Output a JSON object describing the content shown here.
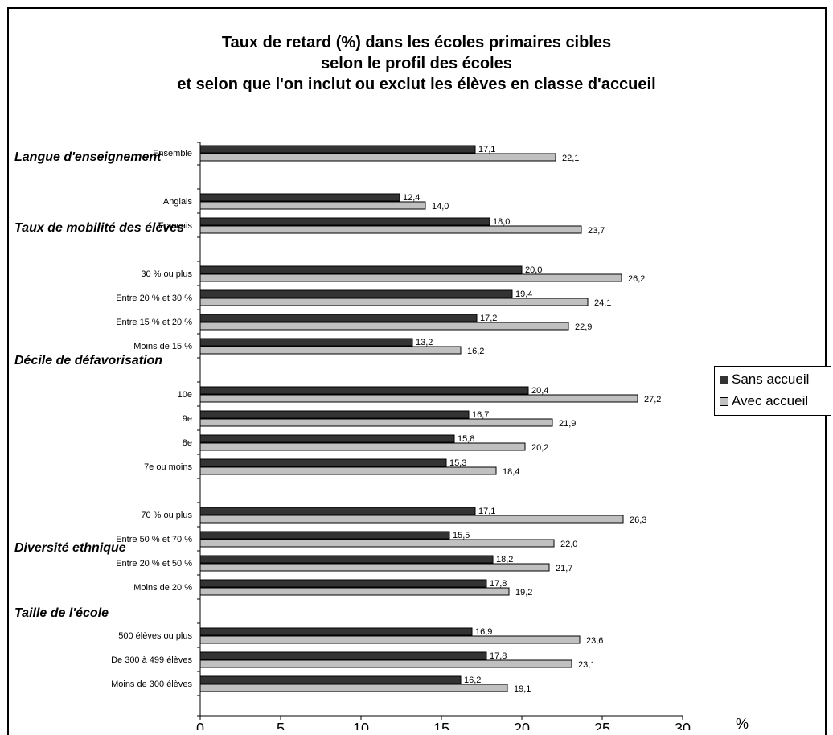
{
  "chart_data": {
    "type": "bar",
    "orientation": "horizontal",
    "title": [
      "Taux de retard (%) dans les écoles primaires cibles",
      "selon le profil des écoles",
      "et selon que l'on inclut ou exclut les élèves en classe d'accueil"
    ],
    "xlabel": "%",
    "xlim": [
      0,
      30
    ],
    "xticks": [
      "0",
      "5",
      "10",
      "15",
      "20",
      "25",
      "30"
    ],
    "legend_position": "right",
    "colors": {
      "sans": "#333333",
      "avec": "#c0c0c0"
    },
    "series": [
      {
        "name": "Sans accueil",
        "key": "sans"
      },
      {
        "name": "Avec accueil",
        "key": "avec"
      }
    ],
    "groups": [
      {
        "heading": "Langue d'enseignement",
        "rows": [
          {
            "label": "Ensemble",
            "sans": 17.1,
            "avec": 22.1,
            "sans_label": "17,1",
            "avec_label": "22,1"
          },
          {
            "label": "Anglais",
            "sans": 12.4,
            "avec": 14.0,
            "sans_label": "12,4",
            "avec_label": "14,0"
          },
          {
            "label": "Français",
            "sans": 18.0,
            "avec": 23.7,
            "sans_label": "18,0",
            "avec_label": "23,7"
          }
        ]
      },
      {
        "heading": "Taux de mobilité des élèves",
        "rows": [
          {
            "label": "30 % ou plus",
            "sans": 20.0,
            "avec": 26.2,
            "sans_label": "20,0",
            "avec_label": "26,2"
          },
          {
            "label": "Entre 20 % et 30 %",
            "sans": 19.4,
            "avec": 24.1,
            "sans_label": "19,4",
            "avec_label": "24,1"
          },
          {
            "label": "Entre 15 % et 20 %",
            "sans": 17.2,
            "avec": 22.9,
            "sans_label": "17,2",
            "avec_label": "22,9"
          },
          {
            "label": "Moins de 15 %",
            "sans": 13.2,
            "avec": 16.2,
            "sans_label": "13,2",
            "avec_label": "16,2"
          }
        ]
      },
      {
        "heading": "Décile de défavorisation",
        "rows": [
          {
            "label": "10e",
            "sans": 20.4,
            "avec": 27.2,
            "sans_label": "20,4",
            "avec_label": "27,2"
          },
          {
            "label": "9e",
            "sans": 16.7,
            "avec": 21.9,
            "sans_label": "16,7",
            "avec_label": "21,9"
          },
          {
            "label": "8e",
            "sans": 15.8,
            "avec": 20.2,
            "sans_label": "15,8",
            "avec_label": "20,2"
          },
          {
            "label": "7e ou moins",
            "sans": 15.3,
            "avec": 18.4,
            "sans_label": "15,3",
            "avec_label": "18,4"
          }
        ]
      },
      {
        "heading": "Diversité ethnique",
        "rows": [
          {
            "label": "70 % ou plus",
            "sans": 17.1,
            "avec": 26.3,
            "sans_label": "17,1",
            "avec_label": "26,3"
          },
          {
            "label": "Entre 50 % et 70 %",
            "sans": 15.5,
            "avec": 22.0,
            "sans_label": "15,5",
            "avec_label": "22,0"
          },
          {
            "label": "Entre 20 % et 50 %",
            "sans": 18.2,
            "avec": 21.7,
            "sans_label": "18,2",
            "avec_label": "21,7"
          },
          {
            "label": "Moins de 20 %",
            "sans": 17.8,
            "avec": 19.2,
            "sans_label": "17,8",
            "avec_label": "19,2"
          }
        ]
      },
      {
        "heading": "Taille de l'école",
        "rows": [
          {
            "label": "500 élèves ou plus",
            "sans": 16.9,
            "avec": 23.6,
            "sans_label": "16,9",
            "avec_label": "23,6"
          },
          {
            "label": "De 300 à 499 élèves",
            "sans": 17.8,
            "avec": 23.1,
            "sans_label": "17,8",
            "avec_label": "23,1"
          },
          {
            "label": "Moins de 300 élèves",
            "sans": 16.2,
            "avec": 19.1,
            "sans_label": "16,2",
            "avec_label": "19,1"
          }
        ]
      }
    ]
  }
}
